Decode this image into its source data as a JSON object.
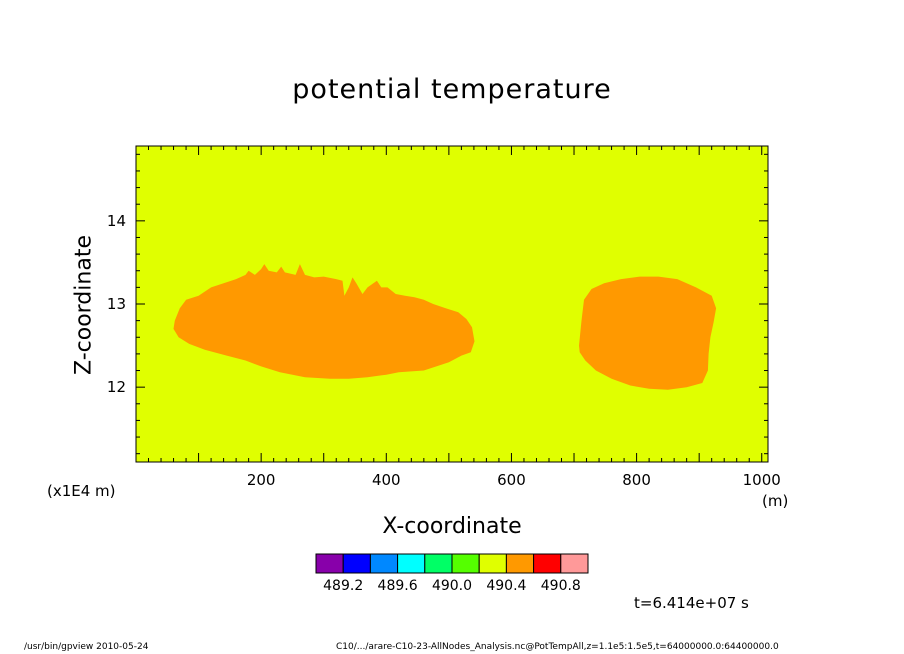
{
  "chart_data": {
    "type": "heatmap",
    "title": "potential temperature",
    "xlabel": "X-coordinate",
    "ylabel": "Z-coordinate",
    "x_units": "(m)",
    "y_units": "(x1E4 m)",
    "xlim": [
      0,
      1010
    ],
    "ylim": [
      11.1,
      14.9
    ],
    "x_ticks": [
      200,
      400,
      600,
      800,
      1000
    ],
    "y_ticks": [
      12,
      13,
      14
    ],
    "x_tick_labels": [
      "200",
      "400",
      "600",
      "800",
      "1000"
    ],
    "y_tick_labels": [
      "12",
      "13",
      "14"
    ],
    "background_level": "490.2-490.4",
    "background_color": "#e0ff00",
    "regions": [
      {
        "level": "490.4-490.6",
        "color": "#ff9900",
        "points": [
          [
            60,
            12.7
          ],
          [
            62,
            12.8
          ],
          [
            70,
            12.95
          ],
          [
            80,
            13.05
          ],
          [
            100,
            13.1
          ],
          [
            120,
            13.2
          ],
          [
            140,
            13.25
          ],
          [
            160,
            13.3
          ],
          [
            175,
            13.35
          ],
          [
            180,
            13.4
          ],
          [
            190,
            13.35
          ],
          [
            200,
            13.42
          ],
          [
            205,
            13.48
          ],
          [
            212,
            13.4
          ],
          [
            225,
            13.38
          ],
          [
            232,
            13.45
          ],
          [
            238,
            13.38
          ],
          [
            255,
            13.35
          ],
          [
            262,
            13.48
          ],
          [
            270,
            13.35
          ],
          [
            285,
            13.32
          ],
          [
            300,
            13.33
          ],
          [
            320,
            13.3
          ],
          [
            330,
            13.28
          ],
          [
            333,
            13.1
          ],
          [
            340,
            13.2
          ],
          [
            346,
            13.32
          ],
          [
            352,
            13.25
          ],
          [
            362,
            13.12
          ],
          [
            370,
            13.2
          ],
          [
            385,
            13.28
          ],
          [
            392,
            13.2
          ],
          [
            402,
            13.2
          ],
          [
            415,
            13.12
          ],
          [
            430,
            13.1
          ],
          [
            445,
            13.08
          ],
          [
            460,
            13.05
          ],
          [
            475,
            13.0
          ],
          [
            495,
            12.95
          ],
          [
            515,
            12.9
          ],
          [
            528,
            12.82
          ],
          [
            537,
            12.72
          ],
          [
            541,
            12.55
          ],
          [
            535,
            12.42
          ],
          [
            520,
            12.38
          ],
          [
            500,
            12.3
          ],
          [
            480,
            12.25
          ],
          [
            460,
            12.2
          ],
          [
            420,
            12.18
          ],
          [
            400,
            12.15
          ],
          [
            370,
            12.12
          ],
          [
            340,
            12.1
          ],
          [
            310,
            12.1
          ],
          [
            270,
            12.12
          ],
          [
            230,
            12.18
          ],
          [
            200,
            12.25
          ],
          [
            175,
            12.32
          ],
          [
            145,
            12.38
          ],
          [
            110,
            12.45
          ],
          [
            85,
            12.52
          ],
          [
            68,
            12.6
          ]
        ]
      },
      {
        "level": "490.4-490.6",
        "color": "#ff9900",
        "points": [
          [
            708,
            12.5
          ],
          [
            712,
            12.8
          ],
          [
            716,
            13.05
          ],
          [
            728,
            13.18
          ],
          [
            748,
            13.25
          ],
          [
            775,
            13.3
          ],
          [
            805,
            13.33
          ],
          [
            835,
            13.33
          ],
          [
            865,
            13.3
          ],
          [
            895,
            13.2
          ],
          [
            920,
            13.1
          ],
          [
            927,
            12.95
          ],
          [
            923,
            12.78
          ],
          [
            918,
            12.6
          ],
          [
            915,
            12.4
          ],
          [
            914,
            12.2
          ],
          [
            905,
            12.05
          ],
          [
            880,
            12.0
          ],
          [
            850,
            11.97
          ],
          [
            820,
            11.98
          ],
          [
            790,
            12.02
          ],
          [
            760,
            12.1
          ],
          [
            735,
            12.2
          ],
          [
            718,
            12.32
          ],
          [
            709,
            12.42
          ]
        ]
      }
    ],
    "colorbar": {
      "colors": [
        "#8800aa",
        "#0000ff",
        "#0088ff",
        "#00ffff",
        "#00ff66",
        "#55ff00",
        "#e0ff00",
        "#ff9900",
        "#ff0000",
        "#ff9999"
      ],
      "labels": [
        "489.2",
        "489.6",
        "490.0",
        "490.4",
        "490.8"
      ]
    }
  },
  "annotations": {
    "timestamp": "t=6.414e+07 s",
    "footer_left": "/usr/bin/gpview   2010-05-24",
    "footer_right": "C10/.../arare-C10-23-AllNodes_Analysis.nc@PotTempAll,z=1.1e5:1.5e5,t=64000000.0:64400000.0"
  }
}
